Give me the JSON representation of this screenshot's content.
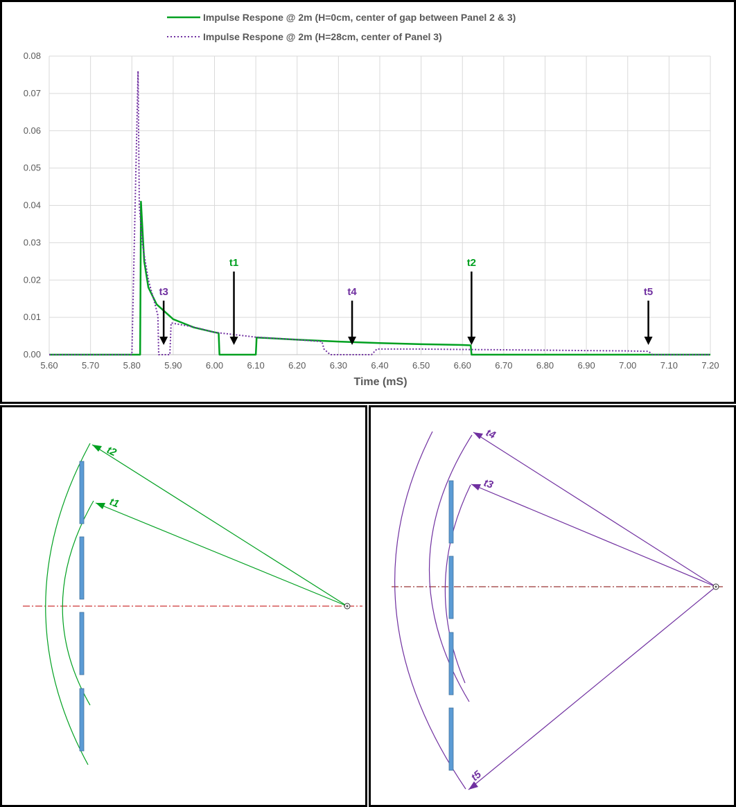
{
  "colors": {
    "green": "#00a020",
    "purple": "#7030a0",
    "panel": "#5b9bd5",
    "axis_center": "#c00000",
    "grid": "#d9d9d9"
  },
  "chart_data": {
    "type": "line",
    "title": "",
    "xlabel": "Time (mS)",
    "ylabel": "",
    "xlim": [
      5.6,
      7.2
    ],
    "ylim": [
      0,
      0.08
    ],
    "x_ticks": [
      "5.60",
      "5.70",
      "5.80",
      "5.90",
      "6.00",
      "6.10",
      "6.20",
      "6.30",
      "6.40",
      "6.50",
      "6.60",
      "6.70",
      "6.80",
      "6.90",
      "7.00",
      "7.10",
      "7.20"
    ],
    "y_ticks": [
      "0.00",
      "0.01",
      "0.02",
      "0.03",
      "0.04",
      "0.05",
      "0.06",
      "0.07",
      "0.08"
    ],
    "grid": true,
    "legend_position": "top",
    "series": [
      {
        "name": "Impulse Respone @ 2m (H=0cm, center of gap between Panel 2 & 3)",
        "color": "#00a020",
        "style": "solid",
        "points": [
          [
            5.6,
            0
          ],
          [
            5.82,
            0
          ],
          [
            5.822,
            0.041
          ],
          [
            5.83,
            0.025
          ],
          [
            5.84,
            0.018
          ],
          [
            5.86,
            0.0135
          ],
          [
            5.9,
            0.0095
          ],
          [
            5.95,
            0.0073
          ],
          [
            6.0,
            0.006
          ],
          [
            6.01,
            0.0058
          ],
          [
            6.012,
            0
          ],
          [
            6.1,
            0
          ],
          [
            6.102,
            0.0046
          ],
          [
            6.2,
            0.004
          ],
          [
            6.3,
            0.0035
          ],
          [
            6.4,
            0.0031
          ],
          [
            6.5,
            0.0028
          ],
          [
            6.6,
            0.0026
          ],
          [
            6.62,
            0.0025
          ],
          [
            6.622,
            0
          ],
          [
            7.2,
            0
          ]
        ]
      },
      {
        "name": "Impulse Respone @ 2m (H=28cm, center of Panel 3)",
        "color": "#7030a0",
        "style": "dotted",
        "points": [
          [
            5.6,
            0
          ],
          [
            5.8,
            0
          ],
          [
            5.815,
            0.076
          ],
          [
            5.818,
            0.04
          ],
          [
            5.825,
            0.03
          ],
          [
            5.84,
            0.02
          ],
          [
            5.855,
            0.014
          ],
          [
            5.863,
            0.0105
          ],
          [
            5.865,
            0
          ],
          [
            5.892,
            0
          ],
          [
            5.895,
            0.0085
          ],
          [
            5.95,
            0.0074
          ],
          [
            6.0,
            0.006
          ],
          [
            6.1,
            0.0047
          ],
          [
            6.2,
            0.004
          ],
          [
            6.26,
            0.0035
          ],
          [
            6.265,
            0.0015
          ],
          [
            6.28,
            0
          ],
          [
            6.38,
            0
          ],
          [
            6.393,
            0.0015
          ],
          [
            6.5,
            0.0015
          ],
          [
            6.6,
            0.0014
          ],
          [
            6.7,
            0.0013
          ],
          [
            6.8,
            0.0012
          ],
          [
            6.9,
            0.0011
          ],
          [
            7.0,
            0.001
          ],
          [
            7.05,
            0.0009
          ],
          [
            7.06,
            0
          ],
          [
            7.2,
            0
          ]
        ]
      }
    ],
    "annotations": [
      {
        "label": "t1",
        "x": 6.047,
        "y": 0.0035,
        "color": "#00a020"
      },
      {
        "label": "t2",
        "x": 6.622,
        "y": 0.0035,
        "color": "#00a020"
      },
      {
        "label": "t3",
        "x": 5.877,
        "y": 0.0035,
        "color": "#7030a0"
      },
      {
        "label": "t4",
        "x": 6.333,
        "y": 0.0035,
        "color": "#7030a0"
      },
      {
        "label": "t5",
        "x": 7.05,
        "y": 0.0035,
        "color": "#7030a0"
      }
    ]
  },
  "diagram_left": {
    "labels": {
      "t2": "t2",
      "t1": "t1"
    },
    "color": "#00a020"
  },
  "diagram_right": {
    "labels": {
      "t4": "t4",
      "t3": "t3",
      "t5": "t5"
    },
    "color": "#7030a0"
  }
}
